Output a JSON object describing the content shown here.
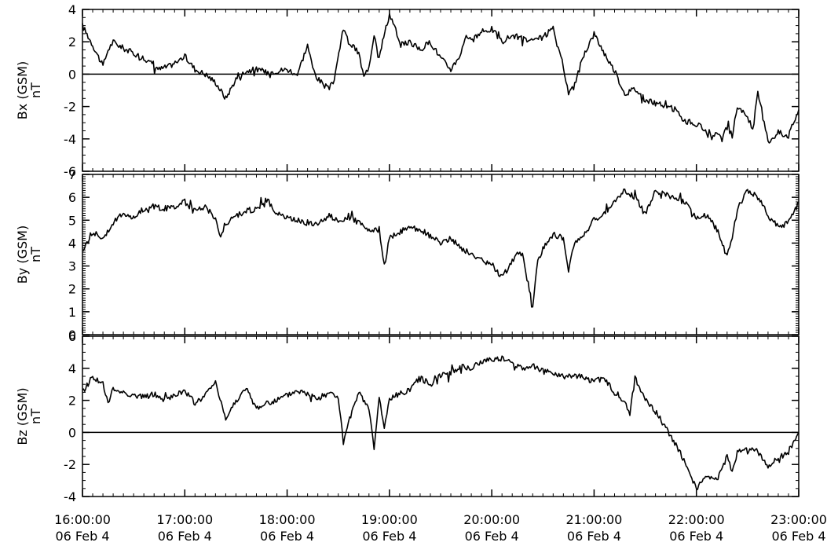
{
  "chart_data": [
    {
      "type": "line",
      "ylabel": "Bx (GSM)",
      "units": "nT",
      "xlim": [
        16,
        23
      ],
      "ylim": [
        -6,
        4
      ],
      "yticks": [
        -6,
        -4,
        -2,
        0,
        2,
        4
      ],
      "ytick_labels": [
        "-6",
        "-4",
        "-2",
        "0",
        "2",
        "4"
      ],
      "reference_line": 0,
      "series": [
        {
          "x": [
            16.0,
            16.1,
            16.2,
            16.25,
            16.3,
            16.4,
            16.5,
            16.6,
            16.75,
            16.85,
            16.95,
            17.0,
            17.1,
            17.2,
            17.3,
            17.4,
            17.5,
            17.6,
            17.7,
            17.8,
            17.9,
            18.0,
            18.1,
            18.2,
            18.25,
            18.3,
            18.4,
            18.45,
            18.55,
            18.6,
            18.7,
            18.75,
            18.8,
            18.85,
            18.9,
            19.0,
            19.05,
            19.1,
            19.2,
            19.3,
            19.4,
            19.5,
            19.6,
            19.7,
            19.75,
            19.8,
            19.9,
            20.0,
            20.1,
            20.2,
            20.3,
            20.4,
            20.5,
            20.6,
            20.65,
            20.7,
            20.75,
            20.8,
            20.9,
            21.0,
            21.1,
            21.2,
            21.3,
            21.4,
            21.5,
            21.6,
            21.7,
            21.8,
            21.85,
            21.9,
            22.0,
            22.1,
            22.15,
            22.2,
            22.25,
            22.3,
            22.35,
            22.4,
            22.5,
            22.55,
            22.6,
            22.65,
            22.7,
            22.8,
            22.9,
            23.0
          ],
          "y": [
            3.0,
            1.8,
            0.5,
            1.5,
            2.0,
            1.6,
            1.3,
            1.0,
            0.3,
            0.5,
            0.9,
            1.1,
            0.3,
            0.0,
            -0.5,
            -1.5,
            -0.3,
            0.2,
            0.3,
            0.1,
            0.2,
            0.3,
            0.0,
            1.8,
            0.4,
            -0.3,
            -0.9,
            -0.6,
            2.8,
            2.0,
            1.3,
            -0.2,
            0.5,
            2.5,
            1.2,
            3.7,
            3.0,
            1.8,
            2.0,
            1.5,
            2.0,
            1.0,
            0.3,
            1.3,
            2.5,
            2.0,
            2.6,
            2.8,
            2.0,
            2.4,
            2.2,
            2.0,
            2.3,
            2.8,
            1.5,
            0.5,
            -1.2,
            -0.8,
            1.2,
            2.5,
            1.3,
            0.2,
            -1.2,
            -0.9,
            -1.6,
            -1.8,
            -2.0,
            -2.2,
            -2.7,
            -2.9,
            -3.1,
            -3.5,
            -3.6,
            -3.8,
            -4.0,
            -3.3,
            -3.8,
            -2.0,
            -2.6,
            -3.5,
            -1.2,
            -2.5,
            -4.2,
            -3.6,
            -3.8,
            -2.2
          ]
        }
      ]
    },
    {
      "type": "line",
      "ylabel": "By (GSM)",
      "units": "nT",
      "xlim": [
        16,
        23
      ],
      "ylim": [
        0,
        7
      ],
      "yticks": [
        0,
        1,
        2,
        3,
        4,
        5,
        6,
        7
      ],
      "ytick_labels": [
        "0",
        "1",
        "2",
        "3",
        "4",
        "5",
        "6",
        "7"
      ],
      "series": [
        {
          "x": [
            16.0,
            16.1,
            16.2,
            16.3,
            16.4,
            16.5,
            16.6,
            16.7,
            16.8,
            16.9,
            17.0,
            17.1,
            17.2,
            17.3,
            17.35,
            17.4,
            17.5,
            17.6,
            17.7,
            17.8,
            17.9,
            18.0,
            18.1,
            18.2,
            18.3,
            18.4,
            18.5,
            18.6,
            18.7,
            18.8,
            18.9,
            18.95,
            19.0,
            19.1,
            19.2,
            19.3,
            19.4,
            19.5,
            19.6,
            19.7,
            19.8,
            19.9,
            20.0,
            20.1,
            20.2,
            20.25,
            20.3,
            20.4,
            20.45,
            20.5,
            20.6,
            20.7,
            20.75,
            20.8,
            20.9,
            21.0,
            21.1,
            21.2,
            21.3,
            21.4,
            21.5,
            21.6,
            21.7,
            21.8,
            21.9,
            22.0,
            22.1,
            22.2,
            22.3,
            22.35,
            22.4,
            22.5,
            22.6,
            22.7,
            22.8,
            22.9,
            23.0
          ],
          "y": [
            3.6,
            4.5,
            4.2,
            4.9,
            5.3,
            5.1,
            5.5,
            5.6,
            5.5,
            5.6,
            5.8,
            5.4,
            5.6,
            5.1,
            4.2,
            4.8,
            5.2,
            5.4,
            5.5,
            5.9,
            5.3,
            5.1,
            5.0,
            4.9,
            4.8,
            5.2,
            5.0,
            5.1,
            4.9,
            4.5,
            4.6,
            3.0,
            4.2,
            4.5,
            4.7,
            4.6,
            4.3,
            4.0,
            4.2,
            3.8,
            3.5,
            3.3,
            3.0,
            2.5,
            3.2,
            3.6,
            3.5,
            1.2,
            3.2,
            3.8,
            4.4,
            4.2,
            2.8,
            3.9,
            4.4,
            5.0,
            5.3,
            5.8,
            6.3,
            6.0,
            5.3,
            6.3,
            6.1,
            6.0,
            5.7,
            5.1,
            5.2,
            4.6,
            3.4,
            4.2,
            5.5,
            6.3,
            6.0,
            5.2,
            4.7,
            4.9,
            5.8
          ]
        }
      ]
    },
    {
      "type": "line",
      "ylabel": "Bz (GSM)",
      "units": "nT",
      "xlim": [
        16,
        23
      ],
      "ylim": [
        -4,
        6
      ],
      "yticks": [
        -4,
        -2,
        0,
        2,
        4,
        6
      ],
      "ytick_labels": [
        "-4",
        "-2",
        "0",
        "2",
        "4",
        "6"
      ],
      "reference_line": 0,
      "series": [
        {
          "x": [
            16.0,
            16.1,
            16.2,
            16.25,
            16.3,
            16.4,
            16.5,
            16.6,
            16.7,
            16.8,
            16.9,
            17.0,
            17.1,
            17.2,
            17.3,
            17.4,
            17.5,
            17.6,
            17.7,
            17.8,
            17.9,
            18.0,
            18.1,
            18.2,
            18.3,
            18.4,
            18.5,
            18.55,
            18.6,
            18.7,
            18.8,
            18.85,
            18.9,
            18.95,
            19.0,
            19.1,
            19.2,
            19.3,
            19.4,
            19.5,
            19.6,
            19.7,
            19.8,
            19.9,
            20.0,
            20.1,
            20.2,
            20.3,
            20.4,
            20.5,
            20.6,
            20.7,
            20.8,
            20.9,
            21.0,
            21.1,
            21.2,
            21.3,
            21.35,
            21.4,
            21.5,
            21.6,
            21.7,
            21.8,
            21.9,
            22.0,
            22.1,
            22.2,
            22.3,
            22.35,
            22.4,
            22.5,
            22.6,
            22.7,
            22.8,
            22.9,
            23.0
          ],
          "y": [
            2.5,
            3.5,
            3.0,
            1.8,
            2.7,
            2.5,
            2.3,
            2.2,
            2.4,
            2.0,
            2.3,
            2.6,
            1.8,
            2.3,
            3.2,
            0.8,
            2.0,
            2.7,
            1.5,
            1.8,
            2.0,
            2.3,
            2.6,
            2.4,
            2.1,
            2.5,
            2.2,
            -0.7,
            0.6,
            2.4,
            1.5,
            -1.1,
            2.2,
            0.2,
            2.1,
            2.4,
            2.7,
            3.4,
            3.0,
            3.6,
            3.7,
            4.1,
            4.0,
            4.4,
            4.6,
            4.6,
            4.3,
            4.0,
            4.2,
            3.8,
            3.7,
            3.5,
            3.6,
            3.4,
            3.2,
            3.4,
            2.4,
            1.8,
            1.2,
            3.4,
            2.0,
            1.3,
            0.3,
            -0.8,
            -2.0,
            -3.5,
            -2.8,
            -3.0,
            -1.5,
            -2.5,
            -1.2,
            -1.0,
            -1.2,
            -2.2,
            -1.6,
            -1.2,
            0.0
          ]
        }
      ]
    }
  ],
  "x_axis": {
    "tick_values": [
      16,
      17,
      18,
      19,
      20,
      21,
      22,
      23
    ],
    "tick_times": [
      "16:00:00",
      "17:00:00",
      "18:00:00",
      "19:00:00",
      "20:00:00",
      "21:00:00",
      "22:00:00",
      "23:00:00"
    ],
    "tick_dates": [
      "06 Feb  4",
      "06 Feb  4",
      "06 Feb  4",
      "06 Feb  4",
      "06 Feb  4",
      "06 Feb  4",
      "06 Feb  4",
      "06 Feb  4"
    ]
  },
  "colors": {
    "line": "#000000",
    "background": "#ffffff"
  }
}
